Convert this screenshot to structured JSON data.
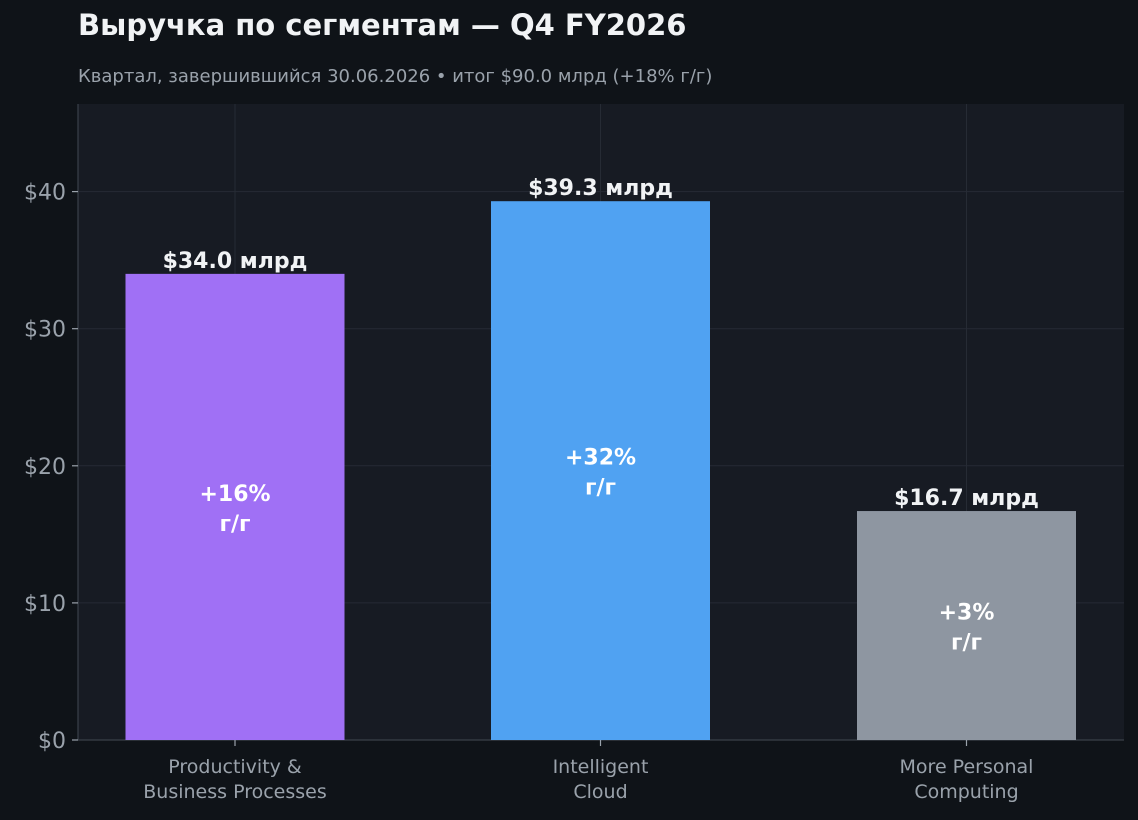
{
  "title": "Выручка по сегментам — Q4 FY2026",
  "subtitle": "Квартал, завершившийся 30.06.2026  •  итог $90.0 млрд (+18% г/г)",
  "colors": {
    "background": "#0f1318",
    "plot_background": "#171b23",
    "grid": "#262b34",
    "text": "#f1f3f5",
    "muted": "#9aa2ab"
  },
  "chart_data": {
    "type": "bar",
    "categories": [
      [
        "Productivity &",
        "Business Processes"
      ],
      [
        "Intelligent",
        "Cloud"
      ],
      [
        "More Personal",
        "Computing"
      ]
    ],
    "values": [
      34.0,
      39.3,
      16.7
    ],
    "value_labels": [
      "$34.0 млрд",
      "$39.3 млрд",
      "$16.7 млрд"
    ],
    "growth_labels": [
      [
        "+16%",
        "г/г"
      ],
      [
        "+32%",
        "г/г"
      ],
      [
        "+3%",
        "г/г"
      ]
    ],
    "bar_colors": [
      "#a070f5",
      "#50a2f2",
      "#8e96a1"
    ],
    "y_ticks": [
      0,
      10,
      20,
      30,
      40
    ],
    "y_tick_labels": [
      "$0",
      "$10",
      "$20",
      "$30",
      "$40"
    ],
    "ylim": [
      0,
      46.3
    ],
    "grid": true,
    "legend": "none",
    "title": "Выручка по сегментам — Q4 FY2026",
    "xlabel": "",
    "ylabel": ""
  }
}
